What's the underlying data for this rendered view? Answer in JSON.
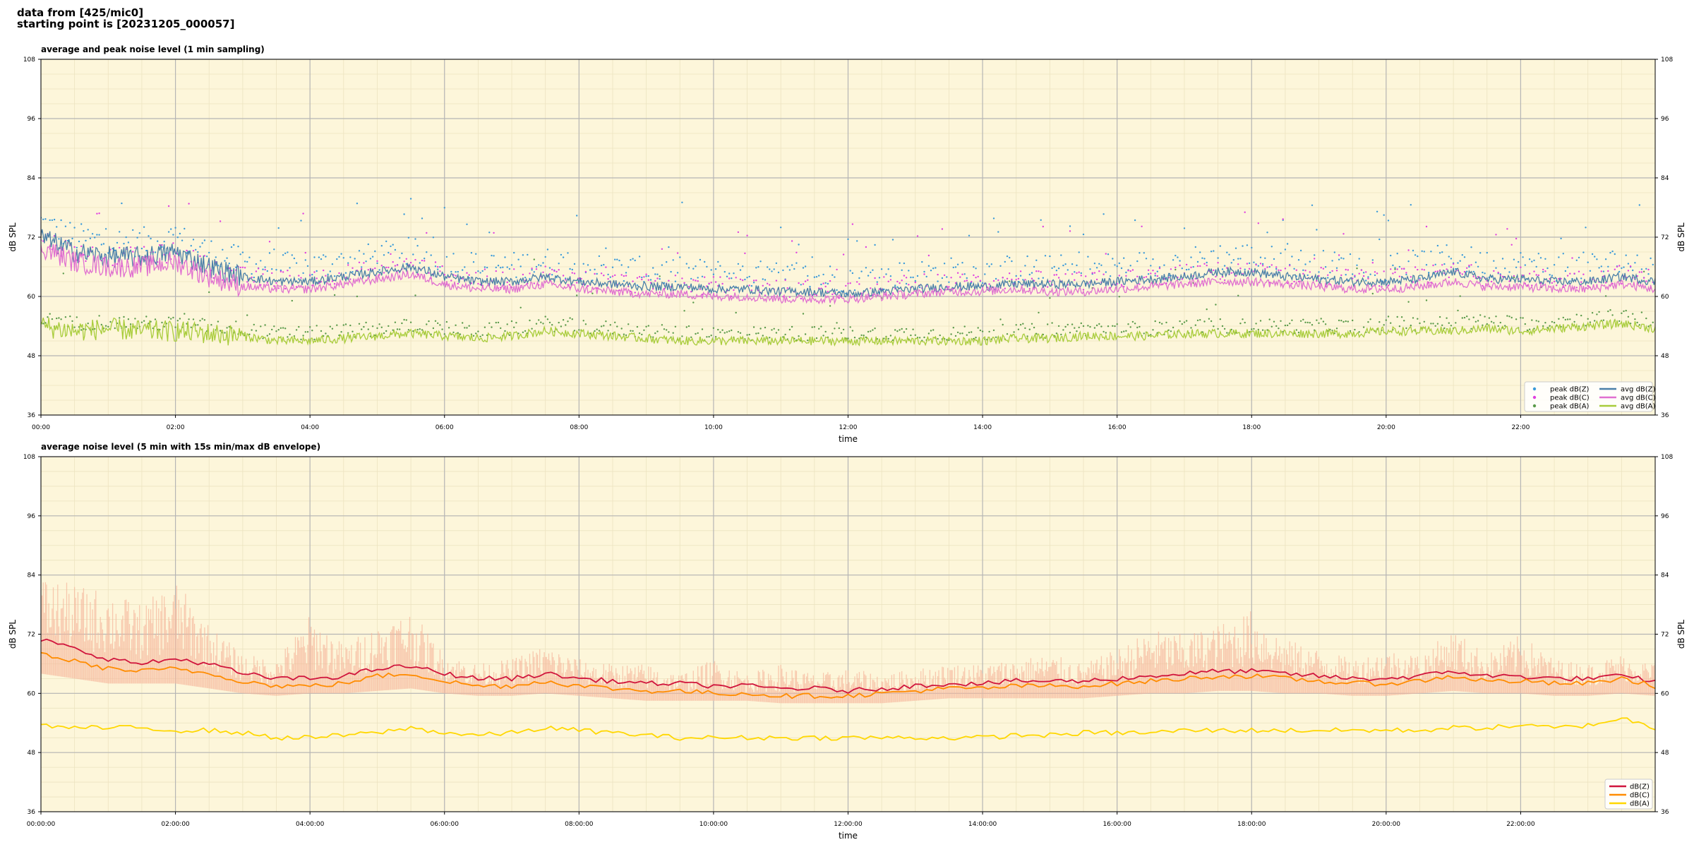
{
  "header": {
    "line1": "data from [425/mic0]",
    "line2": "starting point is [20231205_000057]"
  },
  "chart_data": [
    {
      "type": "scatter+line",
      "title": "average and peak noise level (1 min sampling)",
      "xlabel": "time",
      "ylabel": "dB SPL",
      "ylabel_right": "dB SPL",
      "xlim": [
        0,
        24
      ],
      "ylim": [
        36,
        108
      ],
      "yticks": [
        36,
        48,
        60,
        72,
        84,
        96,
        108
      ],
      "xticks": [
        0,
        2,
        4,
        6,
        8,
        10,
        12,
        14,
        16,
        18,
        20,
        22
      ],
      "xtick_labels": [
        "00:00",
        "02:00",
        "04:00",
        "06:00",
        "08:00",
        "10:00",
        "12:00",
        "14:00",
        "16:00",
        "18:00",
        "20:00",
        "22:00"
      ],
      "grid": true,
      "background": "#fdf6da",
      "legend_position": "bottom-right",
      "legend": [
        {
          "label": "peak dB(Z)",
          "kind": "dot",
          "color": "#3a9ad9"
        },
        {
          "label": "peak dB(C)",
          "kind": "dot",
          "color": "#e040e0"
        },
        {
          "label": "peak dB(A)",
          "kind": "dot",
          "color": "#5a9a4a"
        },
        {
          "label": "avg dB(Z)",
          "kind": "line",
          "color": "#4a7fa8"
        },
        {
          "label": "avg dB(C)",
          "kind": "line",
          "color": "#e070d0"
        },
        {
          "label": "avg dB(A)",
          "kind": "line",
          "color": "#a8cc3a"
        }
      ],
      "series": [
        {
          "name": "avg dB(Z)",
          "color": "#4a7fa8",
          "x": [
            0,
            0.5,
            1,
            1.5,
            2,
            2.5,
            3,
            3.5,
            4,
            4.5,
            5,
            5.5,
            6,
            6.5,
            7,
            7.5,
            8,
            8.5,
            9,
            9.5,
            10,
            10.5,
            11,
            11.5,
            12,
            12.5,
            13,
            13.5,
            14,
            14.5,
            15,
            15.5,
            16,
            16.5,
            17,
            17.5,
            18,
            18.5,
            19,
            19.5,
            20,
            20.5,
            21,
            21.5,
            22,
            22.5,
            23,
            23.5,
            24
          ],
          "y": [
            72,
            69,
            68,
            68,
            69,
            66,
            64,
            63,
            63,
            64,
            65,
            66,
            64,
            63,
            63,
            64,
            63,
            62.5,
            62,
            62,
            61.5,
            61.5,
            61,
            61,
            60.5,
            61,
            61.5,
            62,
            62,
            62.5,
            62.5,
            62.5,
            63,
            63.5,
            64,
            65,
            65,
            64,
            63.5,
            63,
            63,
            63.5,
            65,
            63.5,
            63.5,
            63,
            63,
            64,
            63
          ]
        },
        {
          "name": "avg dB(C)",
          "color": "#e070d0",
          "x": [
            0,
            0.5,
            1,
            1.5,
            2,
            2.5,
            3,
            3.5,
            4,
            4.5,
            5,
            5.5,
            6,
            6.5,
            7,
            7.5,
            8,
            8.5,
            9,
            9.5,
            10,
            10.5,
            11,
            11.5,
            12,
            12.5,
            13,
            13.5,
            14,
            14.5,
            15,
            15.5,
            16,
            16.5,
            17,
            17.5,
            18,
            18.5,
            19,
            19.5,
            20,
            20.5,
            21,
            21.5,
            22,
            22.5,
            23,
            23.5,
            24
          ],
          "y": [
            70,
            67,
            66,
            66,
            67,
            64,
            62,
            61.5,
            61.5,
            62.5,
            63.5,
            64.5,
            62.5,
            61.5,
            61.5,
            62.5,
            61.5,
            61,
            60.5,
            60.5,
            60,
            60,
            59.5,
            59.5,
            59.5,
            60,
            60.5,
            61,
            61,
            61.5,
            61,
            61,
            61.5,
            62,
            62.5,
            63,
            63,
            62.5,
            62,
            61.5,
            61.5,
            62,
            63,
            62,
            62,
            61.5,
            61.5,
            62.5,
            61.5
          ]
        },
        {
          "name": "avg dB(A)",
          "color": "#a8cc3a",
          "x": [
            0,
            0.5,
            1,
            1.5,
            2,
            2.5,
            3,
            3.5,
            4,
            4.5,
            5,
            5.5,
            6,
            6.5,
            7,
            7.5,
            8,
            8.5,
            9,
            9.5,
            10,
            10.5,
            11,
            11.5,
            12,
            12.5,
            13,
            13.5,
            14,
            14.5,
            15,
            15.5,
            16,
            16.5,
            17,
            17.5,
            18,
            18.5,
            19,
            19.5,
            20,
            20.5,
            21,
            21.5,
            22,
            22.5,
            23,
            23.5,
            24
          ],
          "y": [
            54,
            53,
            53.5,
            53,
            53,
            52.5,
            52,
            51,
            51,
            51.5,
            52,
            52.5,
            52,
            51.5,
            52,
            53,
            52.5,
            52,
            51.5,
            51,
            51,
            51,
            51,
            51,
            51,
            51,
            51,
            51,
            51,
            51.5,
            51.5,
            52,
            52,
            52,
            52.5,
            52.5,
            52.5,
            52.5,
            52.5,
            52.5,
            53,
            53,
            53,
            53.5,
            53,
            53.5,
            54,
            54.5,
            53.5
          ]
        }
      ]
    },
    {
      "type": "line+envelope",
      "title": "average noise level (5 min with 15s min/max dB envelope)",
      "xlabel": "time",
      "ylabel": "dB SPL",
      "ylabel_right": "dB SPL",
      "xlim": [
        0,
        24
      ],
      "ylim": [
        36,
        108
      ],
      "yticks": [
        36,
        48,
        60,
        72,
        84,
        96,
        108
      ],
      "xticks": [
        0,
        2,
        4,
        6,
        8,
        10,
        12,
        14,
        16,
        18,
        20,
        22
      ],
      "xtick_labels": [
        "00:00:00",
        "02:00:00",
        "04:00:00",
        "06:00:00",
        "08:00:00",
        "10:00:00",
        "12:00:00",
        "14:00:00",
        "16:00:00",
        "18:00:00",
        "20:00:00",
        "22:00:00"
      ],
      "grid": true,
      "background": "#fdf6da",
      "legend_position": "bottom-right",
      "legend": [
        {
          "label": "dB(Z)",
          "kind": "line",
          "color": "#d0143c"
        },
        {
          "label": "dB(C)",
          "kind": "line",
          "color": "#ff8c00"
        },
        {
          "label": "dB(A)",
          "kind": "line",
          "color": "#ffd700"
        }
      ],
      "series": [
        {
          "name": "dB(Z)",
          "color": "#d0143c",
          "x": [
            0,
            0.5,
            1,
            1.5,
            2,
            2.5,
            3,
            3.5,
            4,
            4.5,
            5,
            5.5,
            6,
            6.5,
            7,
            7.5,
            8,
            8.5,
            9,
            9.5,
            10,
            10.5,
            11,
            11.5,
            12,
            12.5,
            13,
            13.5,
            14,
            14.5,
            15,
            15.5,
            16,
            16.5,
            17,
            17.5,
            18,
            18.5,
            19,
            19.5,
            20,
            20.5,
            21,
            21.5,
            22,
            22.5,
            23,
            23.5,
            24
          ],
          "y": [
            71,
            69,
            67,
            66,
            67,
            66,
            64,
            63,
            63,
            63.5,
            65,
            65.5,
            64,
            63,
            63,
            64,
            63,
            62.5,
            62,
            62,
            61.5,
            61.5,
            61,
            61,
            60.5,
            61,
            61.5,
            62,
            62,
            62.5,
            62.5,
            62.5,
            63,
            63.5,
            64,
            64.5,
            64.5,
            64,
            63.5,
            63,
            63,
            63.5,
            64.5,
            63.5,
            63.5,
            63,
            63,
            63.5,
            62.5
          ]
        },
        {
          "name": "dB(C)",
          "color": "#ff8c00",
          "x": [
            0,
            0.5,
            1,
            1.5,
            2,
            2.5,
            3,
            3.5,
            4,
            4.5,
            5,
            5.5,
            6,
            6.5,
            7,
            7.5,
            8,
            8.5,
            9,
            9.5,
            10,
            10.5,
            11,
            11.5,
            12,
            12.5,
            13,
            13.5,
            14,
            14.5,
            15,
            15.5,
            16,
            16.5,
            17,
            17.5,
            18,
            18.5,
            19,
            19.5,
            20,
            20.5,
            21,
            21.5,
            22,
            22.5,
            23,
            23.5,
            24
          ],
          "y": [
            68,
            66.5,
            65,
            64.5,
            65,
            64,
            62.5,
            61.5,
            61.5,
            62,
            63.5,
            64,
            62.5,
            61.5,
            61.5,
            62.5,
            61.5,
            61,
            60.5,
            60.5,
            60,
            60,
            59.5,
            59.5,
            59.5,
            60,
            60.5,
            61,
            61,
            61.5,
            61.5,
            61.5,
            62,
            62.5,
            63,
            63.5,
            63.5,
            63,
            62.5,
            62,
            62,
            62.5,
            63.5,
            62.5,
            62.5,
            62,
            62,
            63,
            61.5
          ]
        },
        {
          "name": "dB(A)",
          "color": "#ffd700",
          "x": [
            0,
            0.5,
            1,
            1.5,
            2,
            2.5,
            3,
            3.5,
            4,
            4.5,
            5,
            5.5,
            6,
            6.5,
            7,
            7.5,
            8,
            8.5,
            9,
            9.5,
            10,
            10.5,
            11,
            11.5,
            12,
            12.5,
            13,
            13.5,
            14,
            14.5,
            15,
            15.5,
            16,
            16.5,
            17,
            17.5,
            18,
            18.5,
            19,
            19.5,
            20,
            20.5,
            21,
            21.5,
            22,
            22.5,
            23,
            23.5,
            24
          ],
          "y": [
            53.5,
            53,
            53,
            53,
            52.5,
            52.5,
            52,
            51,
            51,
            51.5,
            52,
            53,
            52,
            51.5,
            52,
            53,
            52.5,
            52,
            51.5,
            51,
            51,
            51,
            51,
            51,
            51,
            51,
            51,
            51,
            51,
            51.5,
            51.5,
            52,
            52,
            52,
            52.5,
            52.5,
            52.5,
            52.5,
            52.5,
            52.5,
            52.5,
            52.5,
            53,
            53,
            53.5,
            53,
            53.5,
            55,
            53
          ]
        }
      ],
      "envelope": {
        "color": "#f5b59a",
        "x": [
          0,
          0.5,
          1,
          1.5,
          2,
          2.5,
          3,
          3.5,
          4,
          4.5,
          5,
          5.5,
          6,
          6.5,
          7,
          7.5,
          8,
          8.5,
          9,
          9.5,
          10,
          10.5,
          11,
          11.5,
          12,
          12.5,
          13,
          13.5,
          14,
          14.5,
          15,
          15.5,
          16,
          16.5,
          17,
          17.5,
          18,
          18.5,
          19,
          19.5,
          20,
          20.5,
          21,
          21.5,
          22,
          22.5,
          23,
          23.5,
          24
        ],
        "max": [
          84,
          82,
          81,
          78,
          83,
          74,
          68,
          67,
          76,
          70,
          74,
          77,
          68,
          66,
          67,
          70,
          67,
          66,
          66,
          64,
          67,
          64,
          66,
          64,
          65,
          64,
          65,
          66,
          66,
          67,
          68,
          66,
          69,
          73,
          72,
          74,
          77,
          71,
          69,
          67,
          69,
          68,
          73,
          68,
          72,
          67,
          66,
          68,
          66
        ],
        "min": [
          64,
          63,
          62,
          62,
          62,
          61,
          60,
          59.5,
          60,
          60,
          60.5,
          61,
          60,
          59.5,
          59.5,
          60,
          59.5,
          59,
          58.5,
          58.5,
          58.5,
          58.5,
          58,
          58,
          58,
          58,
          58.5,
          59,
          59,
          59,
          59,
          59,
          59.5,
          60,
          60,
          60.5,
          60.5,
          60,
          60,
          59.5,
          59.5,
          60,
          60.5,
          60,
          60,
          59.5,
          59.5,
          60,
          59.5
        ]
      }
    }
  ]
}
